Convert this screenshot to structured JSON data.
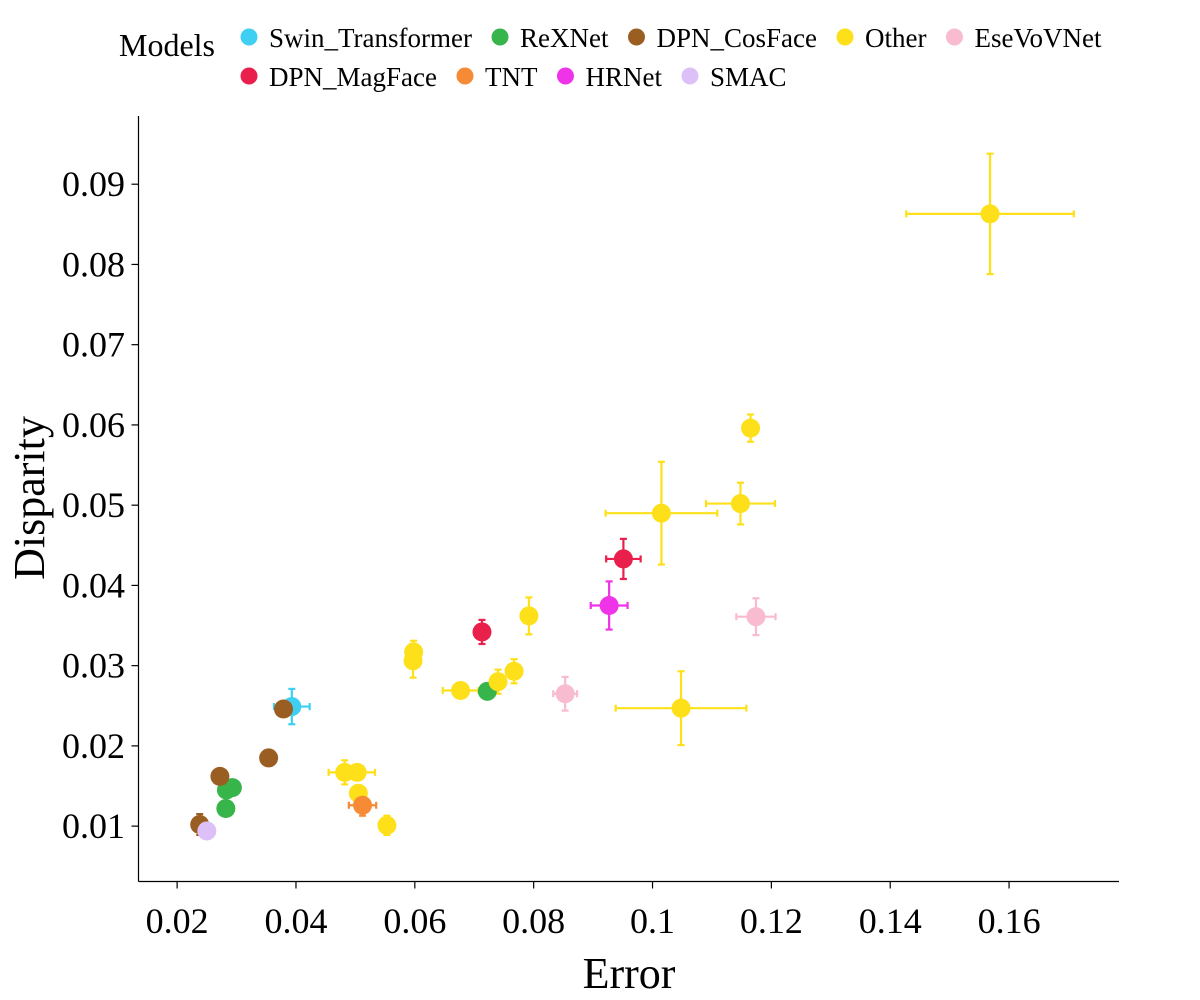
{
  "chart_data": {
    "type": "scatter",
    "xlabel": "Error",
    "ylabel": "Disparity",
    "xlim": [
      0.0135,
      0.1785
    ],
    "ylim": [
      0.0031,
      0.0985
    ],
    "xticks": [
      0.02,
      0.04,
      0.06,
      0.08,
      0.1,
      0.12,
      0.14,
      0.16
    ],
    "xtick_labels": [
      "0.02",
      "0.04",
      "0.06",
      "0.08",
      "0.1",
      "0.12",
      "0.14",
      "0.16"
    ],
    "yticks": [
      0.01,
      0.02,
      0.03,
      0.04,
      0.05,
      0.06,
      0.07,
      0.08,
      0.09
    ],
    "ytick_labels": [
      "0.01",
      "0.02",
      "0.03",
      "0.04",
      "0.05",
      "0.06",
      "0.07",
      "0.08",
      "0.09"
    ],
    "grid": false,
    "legend": {
      "title": "Models",
      "placement": "top",
      "entries": [
        {
          "name": "Swin_Transformer",
          "color": "#3fcff2"
        },
        {
          "name": "ReXNet",
          "color": "#38b54a"
        },
        {
          "name": "DPN_CosFace",
          "color": "#9b5e22"
        },
        {
          "name": "Other",
          "color": "#fde01a"
        },
        {
          "name": "EseVoVNet",
          "color": "#f8bbd0"
        },
        {
          "name": "DPN_MagFace",
          "color": "#e8204b"
        },
        {
          "name": "TNT",
          "color": "#f68a35"
        },
        {
          "name": "HRNet",
          "color": "#ee33e8"
        },
        {
          "name": "SMAC",
          "color": "#dcc0f7"
        }
      ]
    },
    "series": [
      {
        "name": "Swin_Transformer",
        "color": "#3fcff2",
        "points": [
          {
            "x": 0.0393,
            "y": 0.0249,
            "xerr": 0.003,
            "yerr": 0.0022
          }
        ]
      },
      {
        "name": "ReXNet",
        "color": "#38b54a",
        "points": [
          {
            "x": 0.0293,
            "y": 0.0148,
            "xerr": 0,
            "yerr": 0
          },
          {
            "x": 0.0283,
            "y": 0.0145,
            "xerr": 0,
            "yerr": 0
          },
          {
            "x": 0.0282,
            "y": 0.0122,
            "xerr": 0,
            "yerr": 0
          },
          {
            "x": 0.0722,
            "y": 0.0268,
            "xerr": 0,
            "yerr": 0
          }
        ]
      },
      {
        "name": "DPN_CosFace",
        "color": "#9b5e22",
        "points": [
          {
            "x": 0.0272,
            "y": 0.0162,
            "xerr": 0,
            "yerr": 0
          },
          {
            "x": 0.0354,
            "y": 0.0185,
            "xerr": 0,
            "yerr": 0
          },
          {
            "x": 0.0379,
            "y": 0.0246,
            "xerr": 0,
            "yerr": 0
          },
          {
            "x": 0.0238,
            "y": 0.0102,
            "xerr": 0.0012,
            "yerr": 0.0013
          }
        ]
      },
      {
        "name": "Other",
        "color": "#fde01a",
        "points": [
          {
            "x": 0.1568,
            "y": 0.0863,
            "xerr": 0.0141,
            "yerr": 0.0075
          },
          {
            "x": 0.1165,
            "y": 0.0596,
            "xerr": 0,
            "yerr": 0.0017
          },
          {
            "x": 0.1015,
            "y": 0.049,
            "xerr": 0.0094,
            "yerr": 0.0064
          },
          {
            "x": 0.1148,
            "y": 0.0502,
            "xerr": 0.0058,
            "yerr": 0.0026
          },
          {
            "x": 0.0792,
            "y": 0.0362,
            "xerr": 0,
            "yerr": 0.0023
          },
          {
            "x": 0.0598,
            "y": 0.0317,
            "xerr": 0,
            "yerr": 0.0014
          },
          {
            "x": 0.0597,
            "y": 0.0306,
            "xerr": 0,
            "yerr": 0.0021
          },
          {
            "x": 0.0677,
            "y": 0.0269,
            "xerr": 0.003,
            "yerr": 0
          },
          {
            "x": 0.074,
            "y": 0.028,
            "xerr": 0,
            "yerr": 0.0015
          },
          {
            "x": 0.0767,
            "y": 0.0293,
            "xerr": 0,
            "yerr": 0.0015
          },
          {
            "x": 0.1048,
            "y": 0.0247,
            "xerr": 0.011,
            "yerr": 0.0046
          },
          {
            "x": 0.0482,
            "y": 0.0167,
            "xerr": 0.0027,
            "yerr": 0.0015
          },
          {
            "x": 0.0503,
            "y": 0.0167,
            "xerr": 0.003,
            "yerr": 0
          },
          {
            "x": 0.0505,
            "y": 0.0141,
            "xerr": 0,
            "yerr": 0
          },
          {
            "x": 0.0553,
            "y": 0.0101,
            "xerr": 0,
            "yerr": 0.0012
          }
        ]
      },
      {
        "name": "EseVoVNet",
        "color": "#f8bbd0",
        "points": [
          {
            "x": 0.1174,
            "y": 0.0361,
            "xerr": 0.0033,
            "yerr": 0.0023
          },
          {
            "x": 0.0853,
            "y": 0.0265,
            "xerr": 0.002,
            "yerr": 0.0021
          }
        ]
      },
      {
        "name": "DPN_MagFace",
        "color": "#e8204b",
        "points": [
          {
            "x": 0.0951,
            "y": 0.0433,
            "xerr": 0.0029,
            "yerr": 0.0025
          },
          {
            "x": 0.0713,
            "y": 0.0342,
            "xerr": 0,
            "yerr": 0.0015
          }
        ]
      },
      {
        "name": "TNT",
        "color": "#f68a35",
        "points": [
          {
            "x": 0.0512,
            "y": 0.0126,
            "xerr": 0.0023,
            "yerr": 0.0013
          }
        ]
      },
      {
        "name": "HRNet",
        "color": "#ee33e8",
        "points": [
          {
            "x": 0.0927,
            "y": 0.0375,
            "xerr": 0.0031,
            "yerr": 0.003
          }
        ]
      },
      {
        "name": "SMAC",
        "color": "#dcc0f7",
        "points": [
          {
            "x": 0.025,
            "y": 0.0094,
            "xerr": 0,
            "yerr": 0
          }
        ]
      }
    ]
  }
}
